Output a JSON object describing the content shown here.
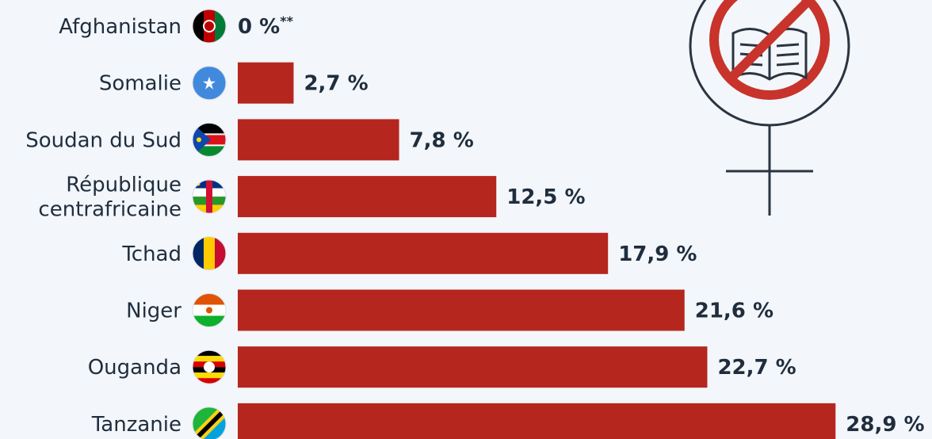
{
  "chart_data": {
    "type": "bar",
    "orientation": "horizontal",
    "categories": [
      "Afghanistan",
      "Somalie",
      "Soudan du Sud",
      "République centrafricaine",
      "Tchad",
      "Niger",
      "Ouganda",
      "Tanzanie"
    ],
    "category_lines": [
      [
        "Afghanistan"
      ],
      [
        "Somalie"
      ],
      [
        "Soudan du Sud"
      ],
      [
        "République",
        "centrafricaine"
      ],
      [
        "Tchad"
      ],
      [
        "Niger"
      ],
      [
        "Ouganda"
      ],
      [
        "Tanzanie"
      ]
    ],
    "values": [
      0,
      2.7,
      7.8,
      12.5,
      17.9,
      21.6,
      22.7,
      28.9
    ],
    "value_labels": [
      "0 %",
      "2,7 %",
      "7,8 %",
      "12,5 %",
      "17,9 %",
      "21,6 %",
      "22,7 %",
      "28,9 %"
    ],
    "value_footnotes": [
      "**",
      "",
      "",
      "",
      "",
      "",
      "",
      ""
    ],
    "flags": [
      "afghanistan-flag-icon",
      "somalia-flag-icon",
      "south-sudan-flag-icon",
      "central-african-republic-flag-icon",
      "chad-flag-icon",
      "niger-flag-icon",
      "uganda-flag-icon",
      "tanzania-flag-icon"
    ],
    "bar_color": "#b5261e",
    "text_color": "#1f2d3d",
    "background": "#f3f6fa",
    "illustration": "no-education-for-women-icon"
  }
}
